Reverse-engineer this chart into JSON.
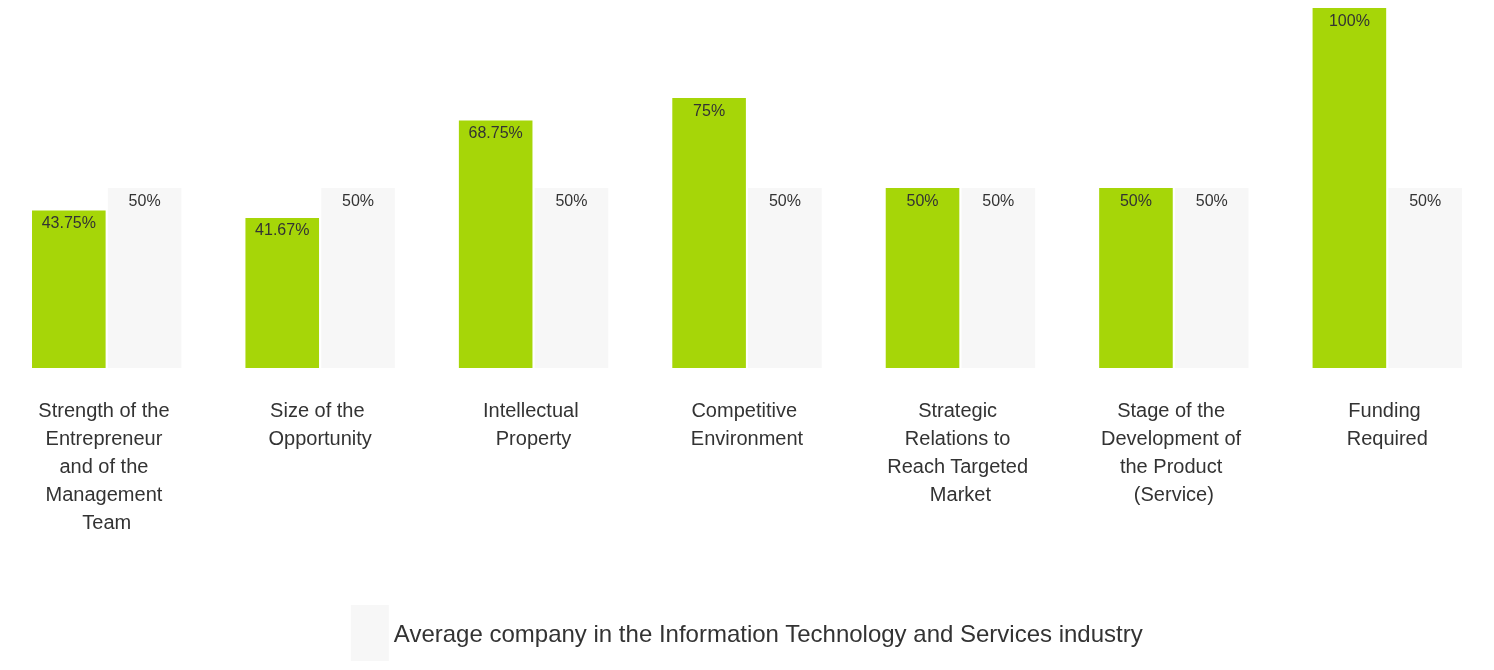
{
  "chart_data": {
    "type": "bar",
    "categories": [
      "Strength of the Entrepreneur and of the Management Team",
      "Size of the Opportunity",
      "Intellectual Property",
      "Competitive Environment",
      "Strategic Relations to Reach Targeted Market",
      "Stage of the Development of the Product (Service)",
      "Funding Required"
    ],
    "series": [
      {
        "color": "#a6d608",
        "values": [
          43.75,
          41.67,
          68.75,
          75,
          50,
          50,
          100
        ],
        "value_labels": [
          "43.75%",
          "41.67%",
          "68.75%",
          "75%",
          "50%",
          "50%",
          "100%"
        ]
      },
      {
        "name": "Average company in the Information Technology and Services industry",
        "color": "#f7f7f7",
        "values": [
          50,
          50,
          50,
          50,
          50,
          50,
          50
        ],
        "value_labels": [
          "50%",
          "50%",
          "50%",
          "50%",
          "50%",
          "50%",
          "50%"
        ]
      }
    ],
    "legend": "bottom"
  }
}
